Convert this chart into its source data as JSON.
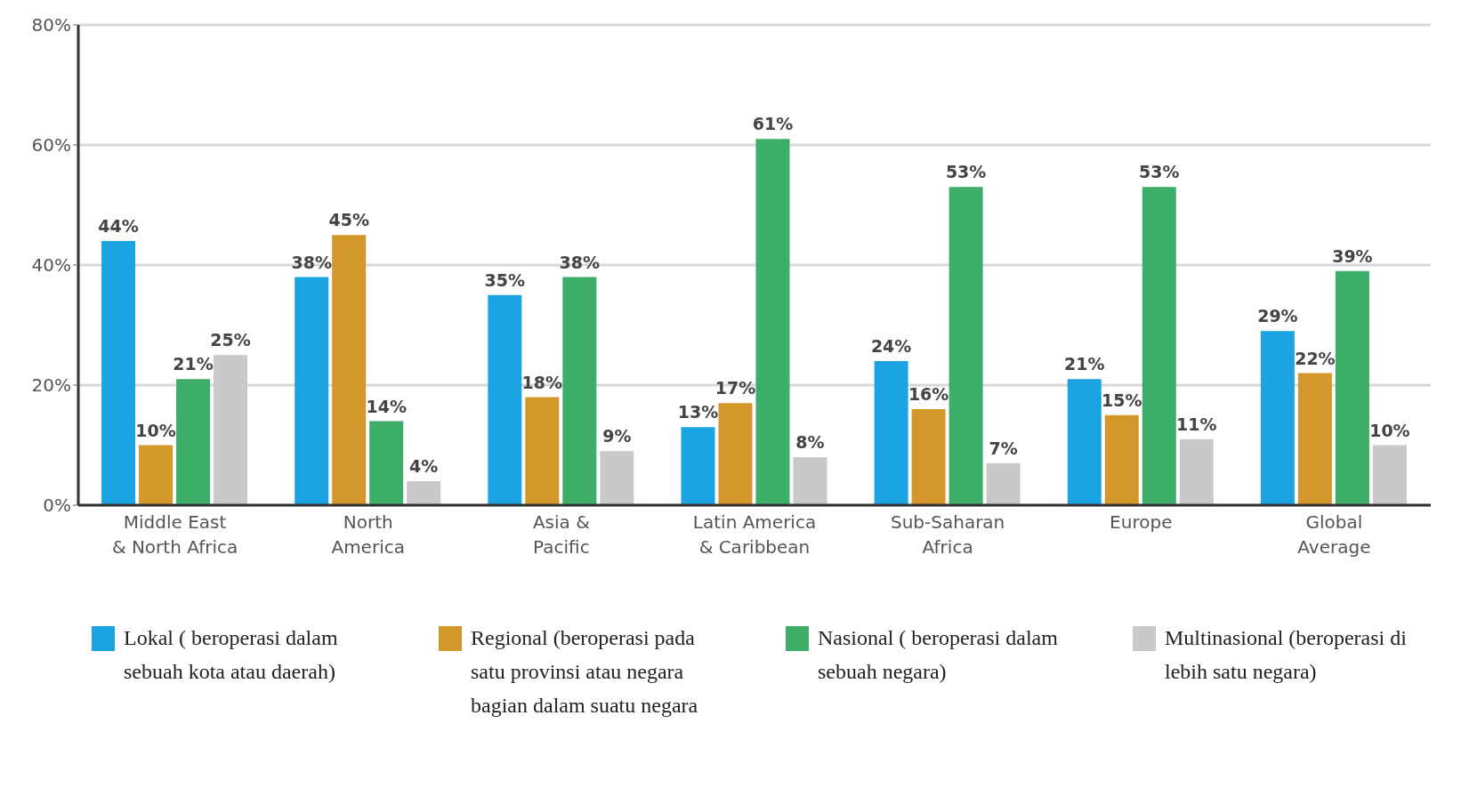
{
  "chart_data": {
    "type": "bar",
    "categories": [
      "Middle East\n& North Africa",
      "North\nAmerica",
      "Asia &\nPacific",
      "Latin America\n& Caribbean",
      "Sub-Saharan\nAfrica",
      "Europe",
      "Global\nAverage"
    ],
    "series": [
      {
        "name": "Lokal ( beroperasi dalam sebuah kota atau daerah)",
        "color": "#1ba3e2",
        "values": [
          44,
          38,
          35,
          13,
          24,
          21,
          29
        ],
        "value_labels": [
          "44%",
          "38%",
          "35%",
          "13%",
          "24%",
          "21%",
          "29%"
        ]
      },
      {
        "name": "Regional (beroperasi pada satu provinsi atau negara bagian dalam suatu negara",
        "color": "#d4972b",
        "values": [
          10,
          45,
          18,
          17,
          16,
          15,
          22
        ],
        "value_labels": [
          "10%",
          "45%",
          "18%",
          "17%",
          "16%",
          "15%",
          "22%"
        ]
      },
      {
        "name": "Nasional ( beroperasi dalam sebuah negara)",
        "color": "#3cae68",
        "values": [
          21,
          14,
          38,
          61,
          53,
          53,
          39
        ],
        "value_labels": [
          "21%",
          "14%",
          "38%",
          "61%",
          "53%",
          "53%",
          "39%"
        ]
      },
      {
        "name": "Multinasional (beroperasi di lebih satu negara)",
        "color": "#c9c9cb",
        "values": [
          25,
          4,
          9,
          8,
          7,
          11,
          10
        ],
        "value_labels": [
          "25%",
          "4%",
          "9%",
          "8%",
          "7%",
          "11%",
          "10%"
        ]
      }
    ],
    "ylim": [
      0,
      80
    ],
    "yticks": [
      {
        "value": 0,
        "label": "0%"
      },
      {
        "value": 20,
        "label": "20%"
      },
      {
        "value": 40,
        "label": "40%"
      },
      {
        "value": 60,
        "label": "60%"
      },
      {
        "value": 80,
        "label": "80%"
      }
    ],
    "grid": "y",
    "legend": "bottom"
  }
}
